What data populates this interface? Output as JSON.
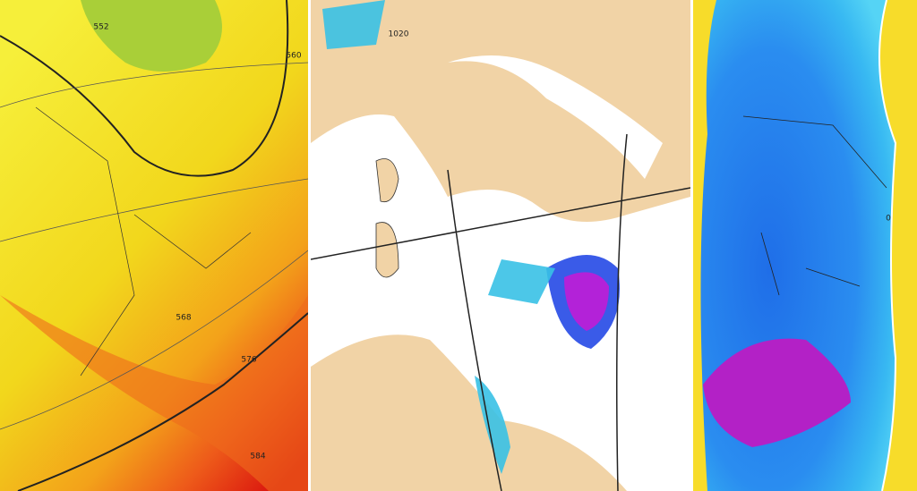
{
  "panels": [
    {
      "contour_labels": [
        "552",
        "560",
        "568",
        "576",
        "584"
      ]
    },
    {
      "contour_labels": [
        "1020"
      ]
    },
    {
      "contour_labels": [
        "0"
      ]
    }
  ]
}
